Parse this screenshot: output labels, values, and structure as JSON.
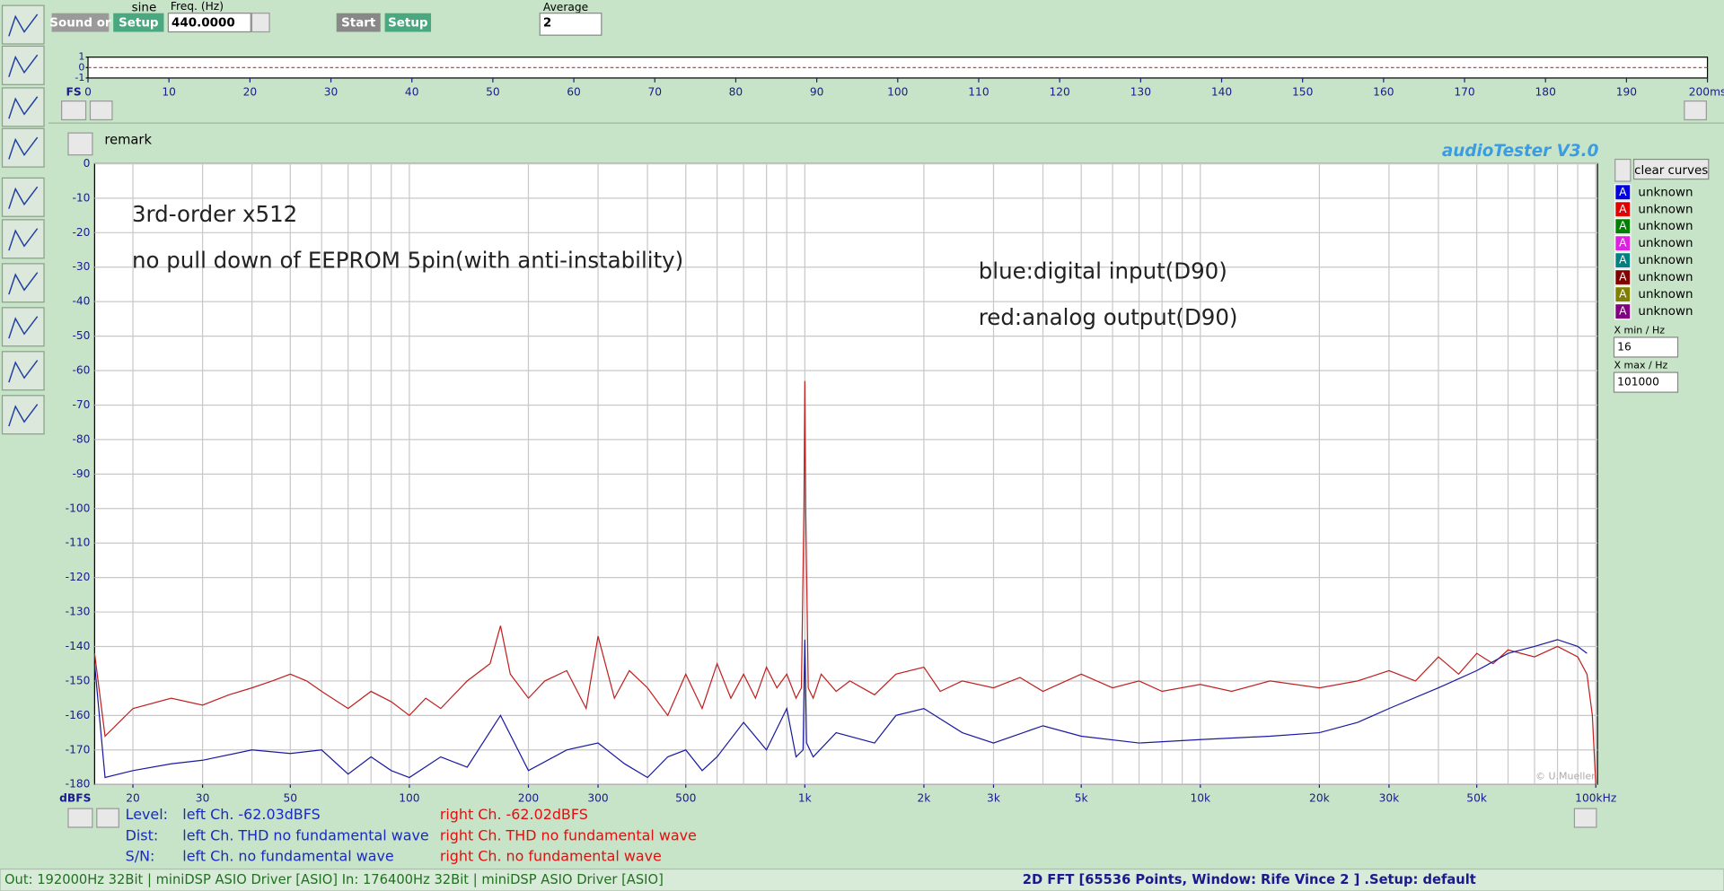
{
  "toolbar": {
    "sound_button": "Sound or",
    "waveform": "sine",
    "setup1": "Setup",
    "freq_label": "Freq. (Hz)",
    "freq_value": "440.0000",
    "start": "Start",
    "setup2": "Setup",
    "average_label": "Average",
    "average_value": "2"
  },
  "fs_label": "FS",
  "remark": "remark",
  "app_title": "audioTester  V3.0",
  "chart_data": [
    {
      "type": "line",
      "xlim": [
        0,
        200
      ],
      "xticks": [
        0,
        10,
        20,
        30,
        40,
        50,
        60,
        70,
        80,
        90,
        100,
        110,
        120,
        130,
        140,
        150,
        160,
        170,
        180,
        190,
        {
          "value": 200,
          "label": "200ms"
        }
      ],
      "ylim": [
        -1,
        1
      ],
      "yticks": [
        1,
        0,
        -1
      ],
      "series": [
        {
          "color": "#c03030",
          "x": [
            0,
            200
          ],
          "values": [
            0,
            0
          ]
        }
      ]
    },
    {
      "type": "line",
      "y_unit": "dBFS",
      "xscale": "log",
      "grid": true,
      "xlim": [
        16,
        101000
      ],
      "ylim": [
        -180,
        0
      ],
      "yticks": [
        0,
        -10,
        -20,
        -30,
        -40,
        -50,
        -60,
        -70,
        -80,
        -90,
        -100,
        -110,
        -120,
        -130,
        -140,
        -150,
        -160,
        -170,
        -180
      ],
      "xticks": [
        20,
        30,
        50,
        100,
        200,
        300,
        500,
        {
          "value": 1000,
          "label": "1k"
        },
        {
          "value": 2000,
          "label": "2k"
        },
        {
          "value": 3000,
          "label": "3k"
        },
        {
          "value": 5000,
          "label": "5k"
        },
        {
          "value": 10000,
          "label": "10k"
        },
        {
          "value": 20000,
          "label": "20k"
        },
        {
          "value": 30000,
          "label": "30k"
        },
        {
          "value": 50000,
          "label": "50k"
        },
        {
          "value": 100000,
          "label": "100kHz"
        }
      ],
      "xgrid": [
        20,
        30,
        40,
        50,
        60,
        70,
        80,
        90,
        100,
        200,
        300,
        400,
        500,
        600,
        700,
        800,
        900,
        1000,
        2000,
        3000,
        4000,
        5000,
        6000,
        7000,
        8000,
        9000,
        10000,
        20000,
        30000,
        40000,
        50000,
        60000,
        70000,
        80000,
        90000,
        100000
      ],
      "annotations": [
        "3rd-order x512",
        "no pull down of EEPROM 5pin(with anti-instability)",
        "blue:digital input(D90)",
        "red:analog output(D90)"
      ],
      "copyright": "© U.Mueller",
      "series": [
        {
          "color": "#c02020",
          "x": [
            16,
            17,
            20,
            25,
            30,
            35,
            40,
            45,
            50,
            55,
            60,
            70,
            80,
            90,
            100,
            110,
            120,
            140,
            160,
            170,
            180,
            200,
            220,
            250,
            280,
            300,
            330,
            360,
            400,
            450,
            500,
            550,
            600,
            650,
            700,
            750,
            800,
            850,
            900,
            950,
            980,
            995,
            1000,
            1005,
            1020,
            1050,
            1100,
            1200,
            1300,
            1500,
            1700,
            2000,
            2200,
            2500,
            3000,
            3500,
            4000,
            5000,
            6000,
            7000,
            8000,
            10000,
            12000,
            15000,
            20000,
            25000,
            30000,
            35000,
            40000,
            45000,
            50000,
            55000,
            60000,
            70000,
            80000,
            90000,
            95000,
            98000,
            100000
          ],
          "values": [
            -142,
            -166,
            -158,
            -155,
            -157,
            -154,
            -152,
            -150,
            -148,
            -150,
            -153,
            -158,
            -153,
            -156,
            -160,
            -155,
            -158,
            -150,
            -145,
            -134,
            -148,
            -155,
            -150,
            -147,
            -158,
            -137,
            -155,
            -147,
            -152,
            -160,
            -148,
            -158,
            -145,
            -155,
            -148,
            -155,
            -146,
            -152,
            -148,
            -155,
            -152,
            -100,
            -63,
            -100,
            -152,
            -155,
            -148,
            -153,
            -150,
            -154,
            -148,
            -146,
            -153,
            -150,
            -152,
            -149,
            -153,
            -148,
            -152,
            -150,
            -153,
            -151,
            -153,
            -150,
            -152,
            -150,
            -147,
            -150,
            -143,
            -148,
            -142,
            -145,
            -141,
            -143,
            -140,
            -143,
            -148,
            -160,
            -180
          ]
        },
        {
          "color": "#1a1aa0",
          "x": [
            16,
            17,
            20,
            25,
            30,
            40,
            50,
            60,
            70,
            80,
            90,
            100,
            120,
            140,
            170,
            200,
            250,
            300,
            350,
            400,
            450,
            500,
            550,
            600,
            700,
            800,
            900,
            950,
            990,
            1000,
            1010,
            1050,
            1200,
            1500,
            1700,
            2000,
            2500,
            3000,
            4000,
            5000,
            7000,
            10000,
            15000,
            20000,
            25000,
            30000,
            40000,
            50000,
            60000,
            70000,
            80000,
            90000,
            95000
          ],
          "values": [
            -145,
            -178,
            -176,
            -174,
            -173,
            -170,
            -171,
            -170,
            -177,
            -172,
            -176,
            -178,
            -172,
            -175,
            -160,
            -176,
            -170,
            -168,
            -174,
            -178,
            -172,
            -170,
            -176,
            -172,
            -162,
            -170,
            -158,
            -172,
            -170,
            -138,
            -168,
            -172,
            -165,
            -168,
            -160,
            -158,
            -165,
            -168,
            -163,
            -166,
            -168,
            -167,
            -166,
            -165,
            -162,
            -158,
            -152,
            -147,
            -142,
            -140,
            -138,
            -140,
            -142
          ]
        }
      ]
    }
  ],
  "legend_panel": {
    "clear": "clear curves",
    "entries": [
      {
        "letter": "A",
        "color": "#0000e0",
        "label": "unknown"
      },
      {
        "letter": "A",
        "color": "#e00000",
        "label": "unknown"
      },
      {
        "letter": "A",
        "color": "#008000",
        "label": "unknown"
      },
      {
        "letter": "A",
        "color": "#e020e0",
        "label": "unknown"
      },
      {
        "letter": "A",
        "color": "#008080",
        "label": "unknown"
      },
      {
        "letter": "A",
        "color": "#800000",
        "label": "unknown"
      },
      {
        "letter": "A",
        "color": "#808000",
        "label": "unknown"
      },
      {
        "letter": "A",
        "color": "#800080",
        "label": "unknown"
      }
    ],
    "xmin_label": "X min / Hz",
    "xmin_value": "16",
    "xmax_label": "X max / Hz",
    "xmax_value": "101000"
  },
  "readout": [
    {
      "label": "Level:",
      "left": "left Ch. -62.03dBFS",
      "right": "right Ch. -62.02dBFS"
    },
    {
      "label": "Dist:",
      "left": "left Ch. THD no fundamental wave",
      "right": "right Ch. THD no fundamental wave"
    },
    {
      "label": "S/N:",
      "left": "left Ch.  no fundamental wave",
      "right": "right Ch.  no fundamental wave"
    }
  ],
  "status": {
    "left": "Out: 192000Hz 32Bit  | miniDSP ASIO Driver [ASIO] In: 176400Hz 32Bit  | miniDSP ASIO Driver [ASIO]",
    "right": "2D FFT [65536 Points, Window: Rife Vince 2 ]  .Setup:  default"
  }
}
